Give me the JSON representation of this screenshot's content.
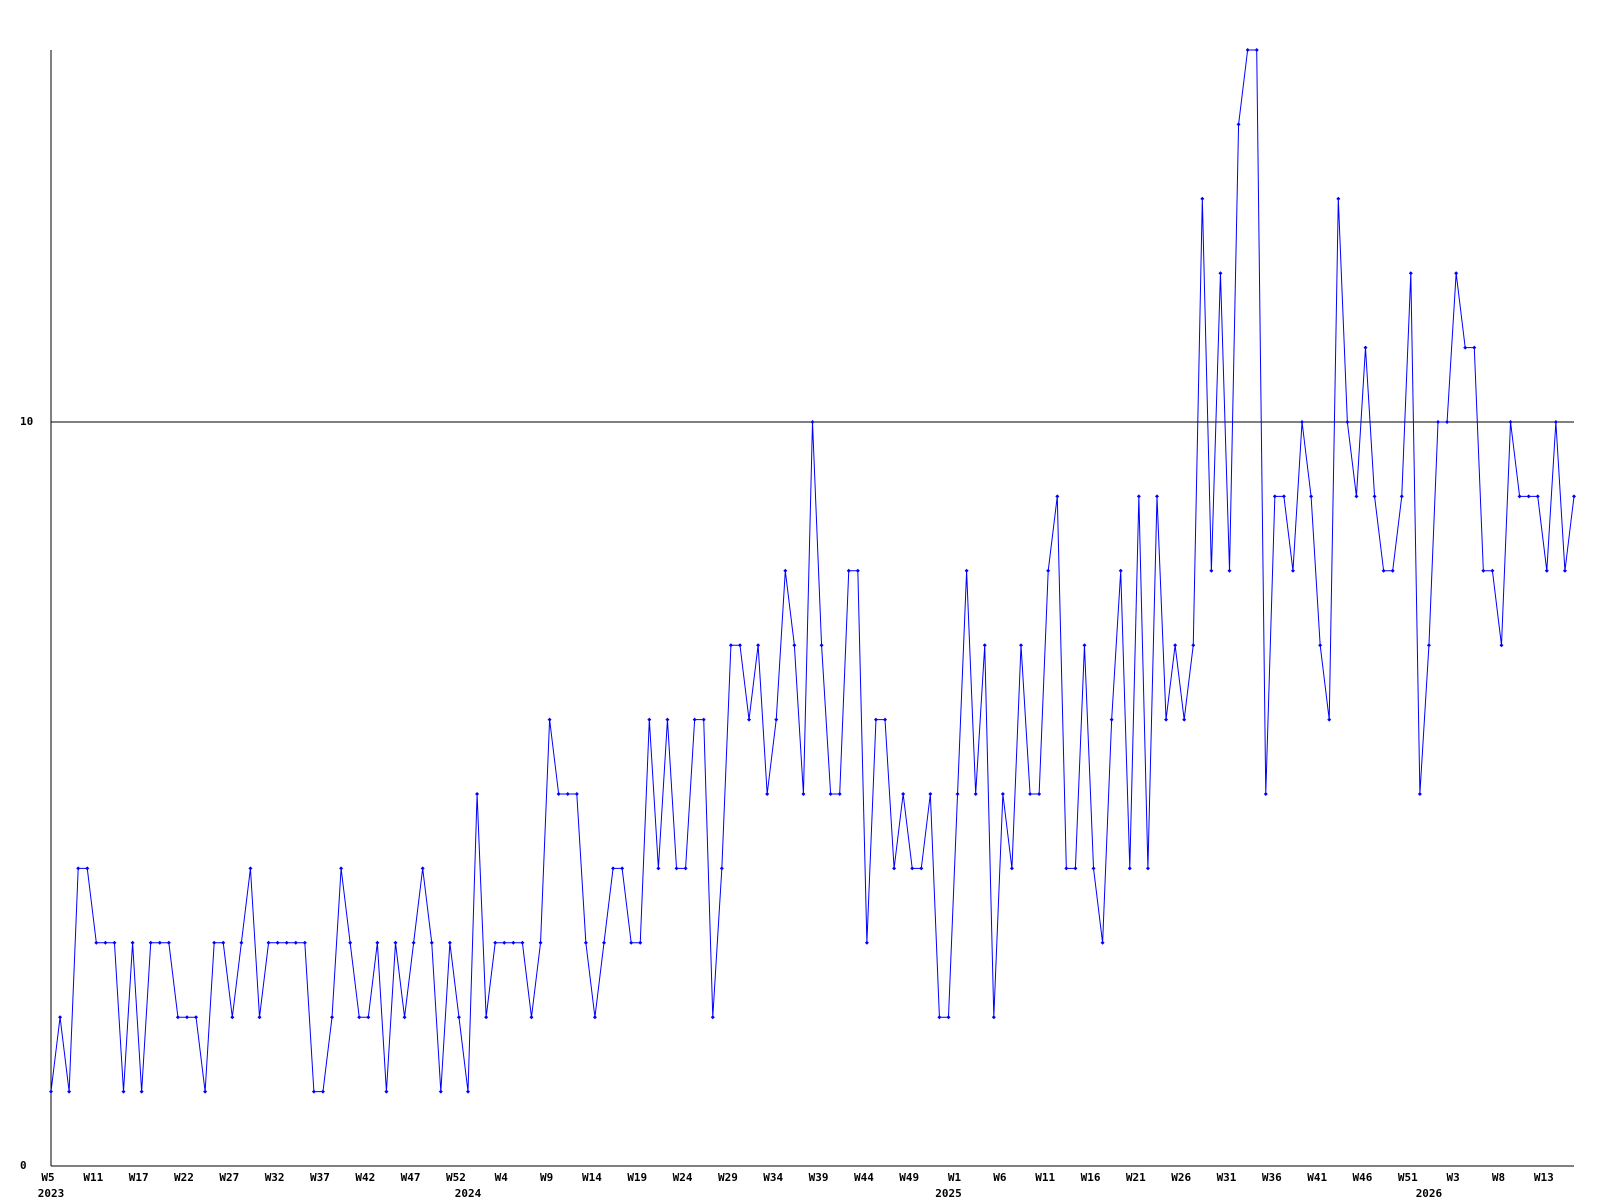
{
  "chart_data": {
    "type": "line",
    "categories": [
      "W5",
      null,
      null,
      null,
      null,
      "W11",
      null,
      null,
      null,
      null,
      "W17",
      null,
      null,
      null,
      null,
      "W22",
      null,
      null,
      null,
      null,
      "W27",
      null,
      null,
      null,
      null,
      "W32",
      null,
      null,
      null,
      null,
      "W37",
      null,
      null,
      null,
      null,
      "W42",
      null,
      null,
      null,
      null,
      "W47",
      null,
      null,
      null,
      null,
      "W52",
      null,
      null,
      null,
      null,
      "W4",
      null,
      null,
      null,
      null,
      "W9",
      null,
      null,
      null,
      null,
      "W14",
      null,
      null,
      null,
      null,
      "W19",
      null,
      null,
      null,
      null,
      "W24",
      null,
      null,
      null,
      null,
      "W29",
      null,
      null,
      null,
      null,
      "W34",
      null,
      null,
      null,
      null,
      "W39",
      null,
      null,
      null,
      null,
      "W44",
      null,
      null,
      null,
      null,
      "W49",
      null,
      null,
      null,
      null,
      "W1",
      null,
      null,
      null,
      null,
      "W6",
      null,
      null,
      null,
      null,
      "W11",
      null,
      null,
      null,
      null,
      "W16",
      null,
      null,
      null,
      null,
      "W21",
      null,
      null,
      null,
      null,
      "W26",
      null,
      null,
      null,
      null,
      "W31",
      null,
      null,
      null,
      null,
      "W36",
      null,
      null,
      null,
      null,
      "W41",
      null,
      null,
      null,
      null,
      "W46",
      null,
      null,
      null,
      null,
      "W51",
      null,
      null,
      null,
      null,
      "W3",
      null,
      null,
      null,
      null,
      "W8",
      null,
      null,
      null,
      null,
      "W13",
      null,
      null,
      null
    ],
    "year_labels": [
      "2023",
      null,
      null,
      null,
      null,
      null,
      null,
      null,
      null,
      null,
      null,
      null,
      null,
      null,
      null,
      null,
      null,
      null,
      null,
      null,
      null,
      null,
      null,
      null,
      null,
      null,
      null,
      null,
      null,
      null,
      null,
      null,
      null,
      null,
      null,
      null,
      null,
      null,
      null,
      null,
      null,
      null,
      null,
      null,
      null,
      null,
      "2024",
      null,
      null,
      null,
      null,
      null,
      null,
      null,
      null,
      null,
      null,
      null,
      null,
      null,
      null,
      null,
      null,
      null,
      null,
      null,
      null,
      null,
      null,
      null,
      null,
      null,
      null,
      null,
      null,
      null,
      null,
      null,
      null,
      null,
      null,
      null,
      null,
      null,
      null,
      null,
      null,
      null,
      null,
      null,
      null,
      null,
      null,
      null,
      null,
      null,
      null,
      null,
      null,
      "2025",
      null,
      null,
      null,
      null,
      null,
      null,
      null,
      null,
      null,
      null,
      null,
      null,
      null,
      null,
      null,
      null,
      null,
      null,
      null,
      null,
      null,
      null,
      null,
      null,
      null,
      null,
      null,
      null,
      null,
      null,
      null,
      null,
      null,
      null,
      null,
      null,
      null,
      null,
      null,
      null,
      null,
      null,
      null,
      null,
      null,
      null,
      null,
      null,
      null,
      null,
      null,
      null,
      "2026",
      null,
      null,
      null,
      null,
      null,
      null,
      null,
      null,
      null,
      null,
      null,
      null,
      null,
      null,
      null,
      null
    ],
    "values": [
      1,
      2,
      1,
      4,
      4,
      3,
      3,
      3,
      1,
      3,
      1,
      3,
      3,
      3,
      2,
      2,
      2,
      1,
      3,
      3,
      2,
      3,
      4,
      2,
      3,
      3,
      3,
      3,
      3,
      1,
      1,
      2,
      4,
      3,
      2,
      2,
      3,
      1,
      3,
      2,
      3,
      4,
      3,
      1,
      3,
      2,
      1,
      5,
      2,
      3,
      3,
      3,
      3,
      2,
      3,
      6,
      5,
      5,
      5,
      3,
      2,
      3,
      4,
      4,
      3,
      3,
      6,
      4,
      6,
      4,
      4,
      6,
      6,
      2,
      4,
      7,
      7,
      6,
      7,
      5,
      6,
      8,
      7,
      5,
      10,
      7,
      5,
      5,
      8,
      8,
      3,
      6,
      6,
      4,
      5,
      4,
      4,
      5,
      2,
      2,
      5,
      8,
      5,
      7,
      2,
      5,
      4,
      7,
      5,
      5,
      8,
      9,
      4,
      4,
      7,
      4,
      3,
      6,
      8,
      4,
      9,
      4,
      9,
      6,
      7,
      6,
      7,
      13,
      8,
      12,
      8,
      14,
      15,
      15,
      5,
      9,
      9,
      8,
      10,
      9,
      7,
      6,
      13,
      10,
      9,
      11,
      9,
      8,
      8,
      9,
      12,
      5,
      7,
      10,
      10,
      12,
      11,
      11,
      8,
      8,
      7,
      10,
      9,
      9,
      9,
      8,
      10,
      8,
      9
    ],
    "color": "#0000ff",
    "ylim": [
      0,
      15
    ],
    "yticks": [
      0,
      10
    ],
    "grid": true
  }
}
